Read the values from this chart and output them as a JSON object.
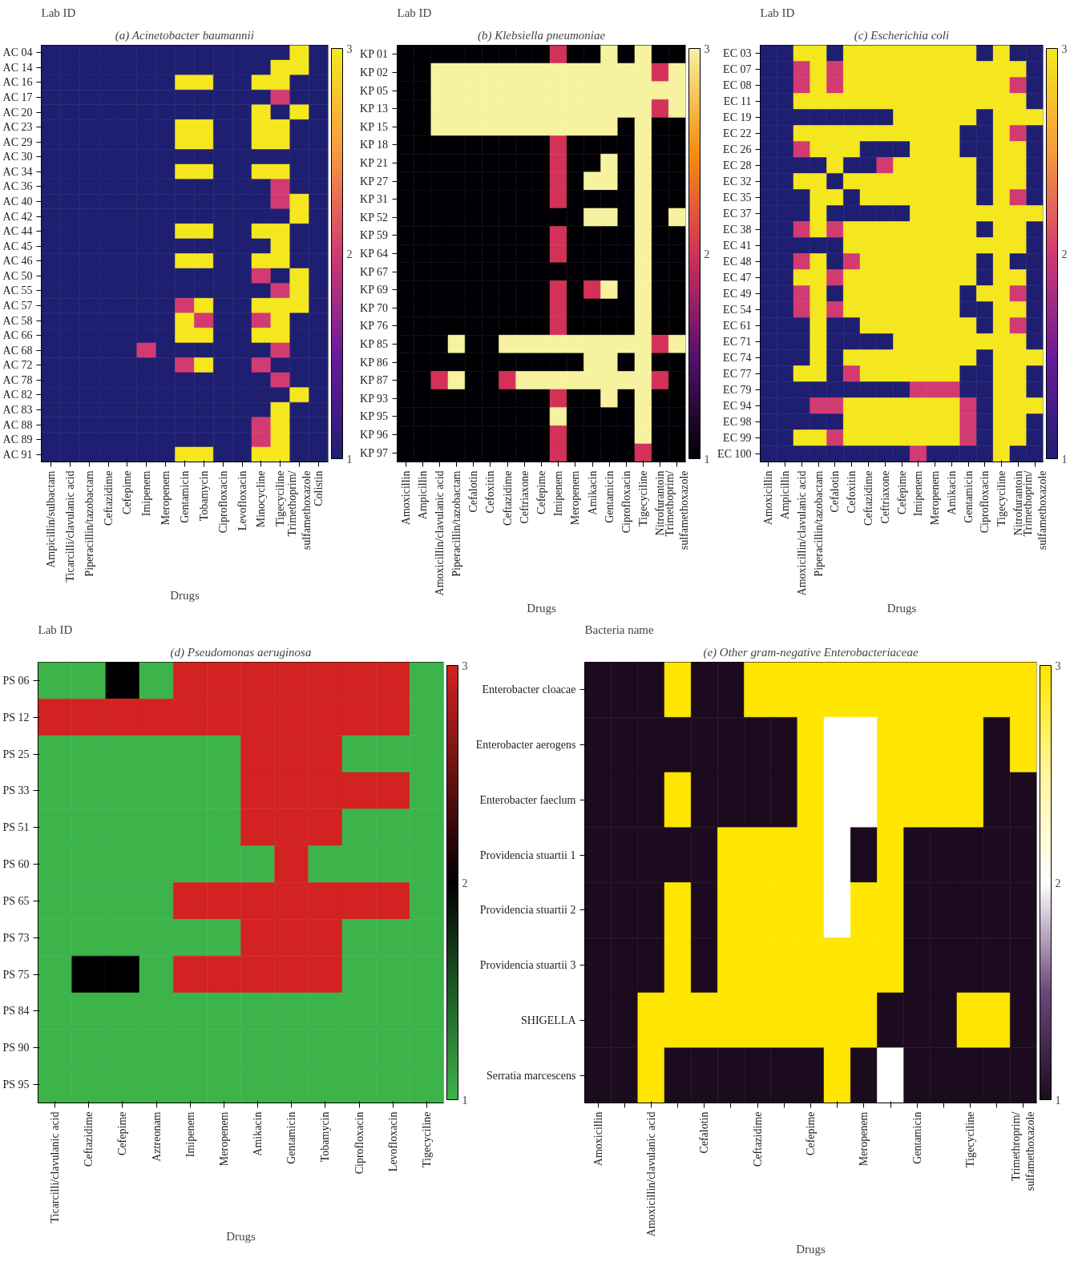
{
  "chart_data": [
    {
      "type": "heatmap",
      "title": "(a) Acinetobacter baumannii",
      "ylabel": "Lab ID",
      "xlabel": "Drugs",
      "clim": [
        1,
        3
      ],
      "cticks": [
        1,
        2,
        3
      ],
      "colors": [
        "#1f1f72",
        "#6a1a9a",
        "#d23a72",
        "#f79a3e",
        "#f5e71e"
      ],
      "categories": [
        "Ampicillin/sulbactam",
        "Ticarcilli/clavulanic acid",
        "Piperacillin/tazobactam",
        "Ceftazidime",
        "Cefepime",
        "Imipenem",
        "Meropenem",
        "Gentamicin",
        "Tobamycin",
        "Ciprofloxacin",
        "Levofloxacin",
        "Minocycline",
        "Tigecyciline",
        "Trimethoprim/ sulfamethoxazole",
        "Colistin"
      ],
      "y_categories": [
        "AC 04",
        "AC 14",
        "AC 16",
        "AC 17",
        "AC 20",
        "AC 23",
        "AC 29",
        "AC 30",
        "AC 34",
        "AC 36",
        "AC 40",
        "AC 42",
        "AC 44",
        "AC 45",
        "AC 46",
        "AC 50",
        "AC 55",
        "AC 57",
        "AC 58",
        "AC 66",
        "AC 68",
        "AC 72",
        "AC 78",
        "AC 82",
        "AC 83",
        "AC 88",
        "AC 89",
        "AC 91"
      ],
      "cells": [
        [
          1,
          1,
          1,
          1,
          1,
          1,
          1,
          1,
          1,
          1,
          1,
          1,
          1,
          3,
          1
        ],
        [
          1,
          1,
          1,
          1,
          1,
          1,
          1,
          1,
          1,
          1,
          1,
          1,
          3,
          3,
          1
        ],
        [
          1,
          1,
          1,
          1,
          1,
          1,
          1,
          3,
          3,
          1,
          1,
          3,
          3,
          1,
          1
        ],
        [
          1,
          1,
          1,
          1,
          1,
          1,
          1,
          1,
          1,
          1,
          1,
          1,
          2,
          1,
          1
        ],
        [
          1,
          1,
          1,
          1,
          1,
          1,
          1,
          1,
          1,
          1,
          1,
          3,
          1,
          3,
          1
        ],
        [
          1,
          1,
          1,
          1,
          1,
          1,
          1,
          3,
          3,
          1,
          1,
          3,
          3,
          1,
          1
        ],
        [
          1,
          1,
          1,
          1,
          1,
          1,
          1,
          3,
          3,
          1,
          1,
          3,
          3,
          1,
          1
        ],
        [
          1,
          1,
          1,
          1,
          1,
          1,
          1,
          1,
          1,
          1,
          1,
          1,
          1,
          1,
          1
        ],
        [
          1,
          1,
          1,
          1,
          1,
          1,
          1,
          3,
          3,
          1,
          1,
          3,
          3,
          1,
          1
        ],
        [
          1,
          1,
          1,
          1,
          1,
          1,
          1,
          1,
          1,
          1,
          1,
          1,
          2,
          1,
          1
        ],
        [
          1,
          1,
          1,
          1,
          1,
          1,
          1,
          1,
          1,
          1,
          1,
          1,
          2,
          3,
          1
        ],
        [
          1,
          1,
          1,
          1,
          1,
          1,
          1,
          1,
          1,
          1,
          1,
          1,
          1,
          3,
          1
        ],
        [
          1,
          1,
          1,
          1,
          1,
          1,
          1,
          3,
          3,
          1,
          1,
          3,
          3,
          1,
          1
        ],
        [
          1,
          1,
          1,
          1,
          1,
          1,
          1,
          1,
          1,
          1,
          1,
          1,
          3,
          1,
          1
        ],
        [
          1,
          1,
          1,
          1,
          1,
          1,
          1,
          3,
          3,
          1,
          1,
          3,
          3,
          1,
          1
        ],
        [
          1,
          1,
          1,
          1,
          1,
          1,
          1,
          1,
          1,
          1,
          1,
          2,
          1,
          3,
          1
        ],
        [
          1,
          1,
          1,
          1,
          1,
          1,
          1,
          1,
          1,
          1,
          1,
          1,
          2,
          3,
          1
        ],
        [
          1,
          1,
          1,
          1,
          1,
          1,
          1,
          2,
          3,
          1,
          1,
          3,
          3,
          3,
          1
        ],
        [
          1,
          1,
          1,
          1,
          1,
          1,
          1,
          3,
          2,
          1,
          1,
          2,
          3,
          1,
          1
        ],
        [
          1,
          1,
          1,
          1,
          1,
          1,
          1,
          3,
          3,
          1,
          1,
          3,
          3,
          1,
          1
        ],
        [
          1,
          1,
          1,
          1,
          1,
          2,
          1,
          1,
          1,
          1,
          1,
          1,
          2,
          1,
          1
        ],
        [
          1,
          1,
          1,
          1,
          1,
          1,
          1,
          2,
          3,
          1,
          1,
          2,
          1,
          1,
          1
        ],
        [
          1,
          1,
          1,
          1,
          1,
          1,
          1,
          1,
          1,
          1,
          1,
          1,
          2,
          1,
          1
        ],
        [
          1,
          1,
          1,
          1,
          1,
          1,
          1,
          1,
          1,
          1,
          1,
          1,
          1,
          3,
          1
        ],
        [
          1,
          1,
          1,
          1,
          1,
          1,
          1,
          1,
          1,
          1,
          1,
          1,
          3,
          1,
          1
        ],
        [
          1,
          1,
          1,
          1,
          1,
          1,
          1,
          1,
          1,
          1,
          1,
          2,
          3,
          1,
          1
        ],
        [
          1,
          1,
          1,
          1,
          1,
          1,
          1,
          1,
          1,
          1,
          1,
          2,
          3,
          1,
          1
        ],
        [
          1,
          1,
          1,
          1,
          1,
          1,
          1,
          3,
          3,
          1,
          1,
          3,
          3,
          1,
          1
        ]
      ]
    },
    {
      "type": "heatmap",
      "title": "(b) Klebsiella pneumoniae",
      "ylabel": "Lab ID",
      "xlabel": "Drugs",
      "clim": [
        1,
        3
      ],
      "cticks": [
        1,
        2,
        3
      ],
      "colors": [
        "#000004",
        "#57106e",
        "#d4305a",
        "#f98e09",
        "#f6f2a0"
      ],
      "categories": [
        "Amoxicillin",
        "Ampicillin",
        "Amoxicillin/clavulanic acid",
        "Piperacillin/tazobactam",
        "Cefalotin",
        "Cefoxitin",
        "Ceftazidime",
        "Ceftriaxone",
        "Cefepime",
        "Imipenem",
        "Meropenem",
        "Amikacin",
        "Gentamicin",
        "Ciprofloxacin",
        "Tigecyciline",
        "Nitrofurantoin",
        "Trimethoprim/ sulfamethoxazole"
      ],
      "y_categories": [
        "KP 01",
        "KP 02",
        "KP 05",
        "KP 13",
        "KP 15",
        "KP 18",
        "KP 21",
        "KP 27",
        "KP 31",
        "KP 52",
        "KP 59",
        "KP 64",
        "KP 67",
        "KP 69",
        "KP 70",
        "KP 76",
        "KP 85",
        "KP 86",
        "KP 87",
        "KP 93",
        "KP 95",
        "KP 96",
        "KP 97"
      ],
      "cells": [
        [
          1,
          1,
          1,
          1,
          1,
          1,
          1,
          1,
          1,
          2,
          1,
          1,
          3,
          1,
          3,
          1,
          1
        ],
        [
          1,
          1,
          3,
          3,
          3,
          3,
          3,
          3,
          3,
          3,
          3,
          3,
          3,
          3,
          3,
          2,
          3
        ],
        [
          1,
          1,
          3,
          3,
          3,
          3,
          3,
          3,
          3,
          3,
          3,
          3,
          3,
          3,
          3,
          3,
          3
        ],
        [
          1,
          1,
          3,
          3,
          3,
          3,
          3,
          3,
          3,
          3,
          3,
          3,
          3,
          3,
          3,
          2,
          3
        ],
        [
          1,
          1,
          3,
          3,
          3,
          3,
          3,
          3,
          3,
          3,
          3,
          3,
          3,
          1,
          3,
          1,
          1
        ],
        [
          1,
          1,
          1,
          1,
          1,
          1,
          1,
          1,
          1,
          2,
          1,
          1,
          1,
          1,
          3,
          1,
          1
        ],
        [
          1,
          1,
          1,
          1,
          1,
          1,
          1,
          1,
          1,
          2,
          1,
          1,
          3,
          1,
          3,
          1,
          1
        ],
        [
          1,
          1,
          1,
          1,
          1,
          1,
          1,
          1,
          1,
          2,
          1,
          3,
          3,
          1,
          3,
          1,
          1
        ],
        [
          1,
          1,
          1,
          1,
          1,
          1,
          1,
          1,
          1,
          2,
          1,
          1,
          1,
          1,
          3,
          1,
          1
        ],
        [
          1,
          1,
          1,
          1,
          1,
          1,
          1,
          1,
          1,
          1,
          1,
          3,
          3,
          1,
          3,
          1,
          3
        ],
        [
          1,
          1,
          1,
          1,
          1,
          1,
          1,
          1,
          1,
          2,
          1,
          1,
          1,
          1,
          3,
          1,
          1
        ],
        [
          1,
          1,
          1,
          1,
          1,
          1,
          1,
          1,
          1,
          2,
          1,
          1,
          1,
          1,
          3,
          1,
          1
        ],
        [
          1,
          1,
          1,
          1,
          1,
          1,
          1,
          1,
          1,
          1,
          1,
          1,
          1,
          1,
          3,
          1,
          1
        ],
        [
          1,
          1,
          1,
          1,
          1,
          1,
          1,
          1,
          1,
          2,
          1,
          2,
          3,
          1,
          3,
          1,
          1
        ],
        [
          1,
          1,
          1,
          1,
          1,
          1,
          1,
          1,
          1,
          2,
          1,
          1,
          1,
          1,
          3,
          1,
          1
        ],
        [
          1,
          1,
          1,
          1,
          1,
          1,
          1,
          1,
          1,
          2,
          1,
          1,
          1,
          1,
          3,
          1,
          1
        ],
        [
          1,
          1,
          1,
          3,
          1,
          1,
          3,
          3,
          3,
          3,
          3,
          3,
          3,
          3,
          3,
          2,
          3
        ],
        [
          1,
          1,
          1,
          1,
          1,
          1,
          1,
          1,
          1,
          1,
          1,
          3,
          3,
          1,
          3,
          1,
          1
        ],
        [
          1,
          1,
          2,
          3,
          1,
          1,
          2,
          3,
          3,
          3,
          3,
          3,
          3,
          3,
          3,
          2,
          1
        ],
        [
          1,
          1,
          1,
          1,
          1,
          1,
          1,
          1,
          1,
          2,
          1,
          1,
          3,
          1,
          3,
          1,
          1
        ],
        [
          1,
          1,
          1,
          1,
          1,
          1,
          1,
          1,
          1,
          3,
          1,
          1,
          1,
          1,
          3,
          1,
          1
        ],
        [
          1,
          1,
          1,
          1,
          1,
          1,
          1,
          1,
          1,
          2,
          1,
          1,
          1,
          1,
          3,
          1,
          1
        ],
        [
          1,
          1,
          1,
          1,
          1,
          1,
          1,
          1,
          1,
          2,
          1,
          1,
          1,
          1,
          2,
          1,
          1
        ]
      ]
    },
    {
      "type": "heatmap",
      "title": "(c) Escherichia coli",
      "ylabel": "Lab ID",
      "xlabel": "Drugs",
      "clim": [
        1,
        3
      ],
      "cticks": [
        1,
        2,
        3
      ],
      "colors": [
        "#1f1f72",
        "#6a1a9a",
        "#d23a72",
        "#f79a3e",
        "#f5e71e"
      ],
      "categories": [
        "Amoxicillin",
        "Ampicillin",
        "Amoxicillin/clavulanic acid",
        "Piperacillin/tazobactam",
        "Cefalotin",
        "Cefoxitin",
        "Ceftazidime",
        "Ceftriaxone",
        "Cefepime",
        "Imipenem",
        "Meropenem",
        "Amikacin",
        "Gentamicin",
        "Ciprofloxacin",
        "Tigecyciline",
        "Nitrofurantoin",
        "Trimethoprim/ sulfamethoxazole"
      ],
      "y_categories": [
        "EC 03",
        "EC 07",
        "EC 08",
        "EC 11",
        "EC 19",
        "EC 22",
        "EC 26",
        "EC 28",
        "EC 32",
        "EC 35",
        "EC 37",
        "EC 38",
        "EC 41",
        "EC 48",
        "EC 47",
        "EC 49",
        "EC 54",
        "EC 61",
        "EC 71",
        "EC 74",
        "EC 77",
        "EC 79",
        "EC 94",
        "EC 98",
        "EC 99",
        "EC 100"
      ],
      "cells": [
        [
          1,
          1,
          3,
          3,
          1,
          3,
          3,
          3,
          3,
          3,
          3,
          3,
          3,
          1,
          3,
          1,
          1
        ],
        [
          1,
          1,
          2,
          3,
          2,
          3,
          3,
          3,
          3,
          3,
          3,
          3,
          3,
          3,
          3,
          3,
          1
        ],
        [
          1,
          1,
          2,
          3,
          2,
          3,
          3,
          3,
          3,
          3,
          3,
          3,
          3,
          3,
          3,
          2,
          1
        ],
        [
          1,
          1,
          3,
          3,
          3,
          3,
          3,
          3,
          3,
          3,
          3,
          3,
          3,
          3,
          3,
          3,
          1
        ],
        [
          1,
          1,
          1,
          1,
          1,
          1,
          1,
          1,
          3,
          3,
          3,
          3,
          3,
          1,
          3,
          3,
          3
        ],
        [
          1,
          1,
          3,
          3,
          3,
          3,
          3,
          3,
          3,
          3,
          3,
          3,
          1,
          1,
          3,
          2,
          1
        ],
        [
          1,
          1,
          2,
          3,
          3,
          3,
          1,
          1,
          1,
          3,
          3,
          3,
          1,
          1,
          3,
          3,
          1
        ],
        [
          1,
          1,
          1,
          1,
          3,
          1,
          1,
          2,
          3,
          3,
          3,
          3,
          3,
          1,
          3,
          3,
          1
        ],
        [
          1,
          1,
          3,
          3,
          1,
          3,
          3,
          3,
          3,
          3,
          3,
          3,
          3,
          1,
          3,
          3,
          1
        ],
        [
          1,
          1,
          1,
          3,
          3,
          1,
          3,
          3,
          3,
          3,
          3,
          3,
          3,
          1,
          3,
          2,
          1
        ],
        [
          1,
          1,
          1,
          3,
          1,
          1,
          1,
          1,
          1,
          3,
          3,
          3,
          3,
          3,
          3,
          3,
          3
        ],
        [
          1,
          1,
          2,
          3,
          2,
          3,
          3,
          3,
          3,
          3,
          3,
          3,
          3,
          1,
          3,
          3,
          1
        ],
        [
          1,
          1,
          1,
          1,
          1,
          3,
          3,
          3,
          3,
          3,
          3,
          3,
          3,
          3,
          3,
          3,
          1
        ],
        [
          1,
          1,
          2,
          3,
          1,
          2,
          3,
          3,
          3,
          3,
          3,
          3,
          3,
          1,
          3,
          1,
          1
        ],
        [
          1,
          1,
          3,
          3,
          2,
          3,
          3,
          3,
          3,
          3,
          3,
          3,
          3,
          1,
          3,
          3,
          1
        ],
        [
          1,
          1,
          2,
          3,
          1,
          3,
          3,
          3,
          3,
          3,
          3,
          3,
          1,
          3,
          3,
          2,
          1
        ],
        [
          1,
          1,
          2,
          3,
          2,
          3,
          3,
          3,
          3,
          3,
          3,
          3,
          1,
          1,
          3,
          3,
          1
        ],
        [
          1,
          1,
          1,
          3,
          1,
          1,
          3,
          3,
          3,
          3,
          3,
          3,
          3,
          1,
          3,
          2,
          1
        ],
        [
          1,
          1,
          1,
          3,
          1,
          1,
          1,
          1,
          3,
          3,
          3,
          3,
          3,
          3,
          3,
          3,
          1
        ],
        [
          1,
          1,
          1,
          3,
          1,
          3,
          3,
          3,
          3,
          3,
          3,
          3,
          3,
          1,
          3,
          3,
          3
        ],
        [
          1,
          1,
          3,
          3,
          1,
          2,
          3,
          3,
          3,
          3,
          3,
          3,
          1,
          1,
          3,
          3,
          1
        ],
        [
          1,
          1,
          1,
          1,
          1,
          1,
          1,
          1,
          1,
          2,
          2,
          2,
          1,
          1,
          3,
          3,
          1
        ],
        [
          1,
          1,
          1,
          2,
          2,
          3,
          3,
          3,
          3,
          3,
          3,
          3,
          2,
          1,
          3,
          3,
          3
        ],
        [
          1,
          1,
          1,
          1,
          1,
          3,
          3,
          3,
          3,
          3,
          3,
          3,
          2,
          1,
          3,
          3,
          1
        ],
        [
          1,
          1,
          3,
          3,
          2,
          3,
          3,
          3,
          3,
          3,
          3,
          3,
          2,
          1,
          3,
          3,
          1
        ],
        [
          1,
          1,
          1,
          1,
          1,
          1,
          1,
          1,
          1,
          2,
          1,
          1,
          1,
          1,
          3,
          1,
          1
        ]
      ]
    },
    {
      "type": "heatmap",
      "title": "(d) Pseudomonas aeruginosa",
      "ylabel": "Lab ID",
      "xlabel": "Drugs",
      "clim": [
        1,
        3
      ],
      "cticks": [
        1,
        2,
        3
      ],
      "colors": [
        "#3cb44a",
        "#000000",
        "#d22222"
      ],
      "categories": [
        "Ticarcilli/clavulanic acid",
        "Ceftazidime",
        "Cefepime",
        "Aztreonam",
        "Imipenem",
        "Meropenem",
        "Amikacin",
        "Gentamicin",
        "Tobamycin",
        "Ciprofloxacin",
        "Levofloxacin",
        "Tigecyciline"
      ],
      "y_categories": [
        "PS 06",
        "PS 12",
        "PS 25",
        "PS 33",
        "PS 51",
        "PS 60",
        "PS 65",
        "PS 73",
        "PS 75",
        "PS 84",
        "PS 90",
        "PS 95"
      ],
      "cells": [
        [
          1,
          1,
          2,
          1,
          3,
          3,
          3,
          3,
          3,
          3,
          3,
          1
        ],
        [
          3,
          3,
          3,
          3,
          3,
          3,
          3,
          3,
          3,
          3,
          3,
          1
        ],
        [
          1,
          1,
          1,
          1,
          1,
          1,
          3,
          3,
          3,
          1,
          1,
          1
        ],
        [
          1,
          1,
          1,
          1,
          1,
          1,
          3,
          3,
          3,
          3,
          3,
          1
        ],
        [
          1,
          1,
          1,
          1,
          1,
          1,
          3,
          3,
          3,
          1,
          1,
          1
        ],
        [
          1,
          1,
          1,
          1,
          1,
          1,
          1,
          3,
          1,
          1,
          1,
          1
        ],
        [
          1,
          1,
          1,
          1,
          3,
          3,
          3,
          3,
          3,
          3,
          3,
          1
        ],
        [
          1,
          1,
          1,
          1,
          1,
          1,
          3,
          3,
          3,
          1,
          1,
          1
        ],
        [
          1,
          2,
          2,
          1,
          3,
          3,
          3,
          3,
          3,
          1,
          1,
          1
        ],
        [
          1,
          1,
          1,
          1,
          1,
          1,
          1,
          1,
          1,
          1,
          1,
          1
        ],
        [
          1,
          1,
          1,
          1,
          1,
          1,
          1,
          1,
          1,
          1,
          1,
          1
        ],
        [
          1,
          1,
          1,
          1,
          1,
          1,
          1,
          1,
          1,
          1,
          1,
          1
        ]
      ]
    },
    {
      "type": "heatmap",
      "title": "(e) Other gram-negative Enterobacteriaceae",
      "ylabel": "Bacteria name",
      "xlabel": "Drugs",
      "clim": [
        1,
        3
      ],
      "cticks": [
        1,
        2,
        3
      ],
      "colors": [
        "#1c0b1e",
        "#6b4a7a",
        "#ffffff",
        "#fff6a0",
        "#ffe600"
      ],
      "categories": [
        "Amoxicillin",
        null,
        "Amoxicillin/clavulanic acid",
        null,
        "Cefalotin",
        null,
        "Ceftazidime",
        null,
        "Cefepime",
        null,
        "Meropenem",
        null,
        "Gentamicin",
        null,
        "Tigecyciline",
        null,
        "Trimethroprim/ sulfamethoxazole"
      ],
      "y_categories": [
        "Enterobacter cloacae",
        "Enterobacter aerogens",
        "Enterobacter faeclum",
        "Providencia stuartii 1",
        "Providencia stuartii 2",
        "Providencia stuartii 3",
        "SHIGELLA",
        "Serratia marcescens"
      ],
      "cells": [
        [
          1,
          1,
          1,
          3,
          1,
          1,
          3,
          3,
          3,
          3,
          3,
          3,
          3,
          3,
          3,
          3,
          3
        ],
        [
          1,
          1,
          1,
          1,
          1,
          1,
          1,
          1,
          3,
          2,
          2,
          3,
          3,
          3,
          3,
          1,
          3
        ],
        [
          1,
          1,
          1,
          3,
          1,
          1,
          1,
          1,
          3,
          2,
          2,
          3,
          3,
          3,
          3,
          1,
          1
        ],
        [
          1,
          1,
          1,
          1,
          1,
          3,
          3,
          3,
          3,
          2,
          1,
          3,
          1,
          1,
          1,
          1,
          1
        ],
        [
          1,
          1,
          1,
          3,
          1,
          3,
          3,
          3,
          3,
          2,
          3,
          3,
          1,
          1,
          1,
          1,
          1
        ],
        [
          1,
          1,
          1,
          3,
          1,
          3,
          3,
          3,
          3,
          3,
          3,
          3,
          1,
          1,
          1,
          1,
          1
        ],
        [
          1,
          1,
          3,
          3,
          3,
          3,
          3,
          3,
          3,
          3,
          3,
          1,
          1,
          1,
          3,
          3,
          1
        ],
        [
          1,
          1,
          3,
          1,
          1,
          1,
          1,
          1,
          1,
          3,
          1,
          2,
          1,
          1,
          1,
          1,
          1
        ]
      ]
    }
  ]
}
